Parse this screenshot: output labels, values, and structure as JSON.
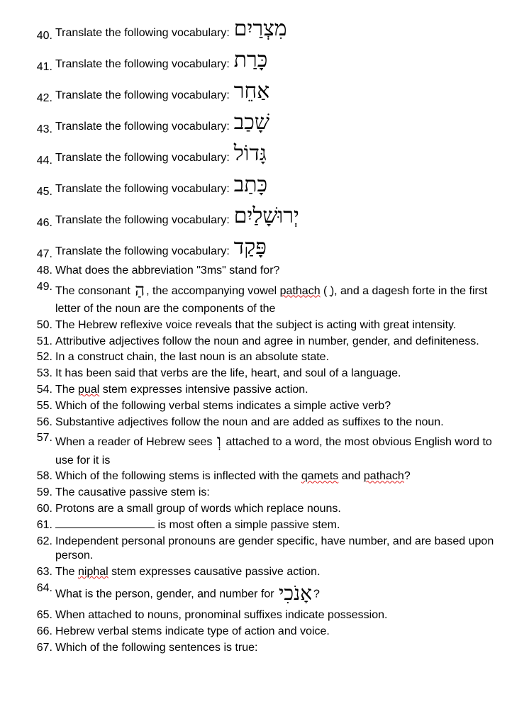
{
  "items": [
    {
      "n": "40.",
      "type": "vocab",
      "label": "Translate the following vocabulary:",
      "hebrew": "מִצְרַיִם"
    },
    {
      "n": "41.",
      "type": "vocab",
      "label": "Translate the following vocabulary:",
      "hebrew": "כָּרַת"
    },
    {
      "n": "42.",
      "type": "vocab",
      "label": "Translate the following vocabulary:",
      "hebrew": "אַחֵר"
    },
    {
      "n": "43.",
      "type": "vocab",
      "label": "Translate the following vocabulary:",
      "hebrew": "שָׁכַב"
    },
    {
      "n": "44.",
      "type": "vocab",
      "label": "Translate the following vocabulary:",
      "hebrew": "גָּדוֹל"
    },
    {
      "n": "45.",
      "type": "vocab",
      "label": "Translate the following vocabulary:",
      "hebrew": "כָּתַב"
    },
    {
      "n": "46.",
      "type": "vocab",
      "label": "Translate the following vocabulary:",
      "hebrew": "יְרוּשָׁלַיִם"
    },
    {
      "n": "47.",
      "type": "vocab",
      "label": "Translate the following vocabulary:",
      "hebrew": "פָּקַד"
    },
    {
      "n": "48.",
      "type": "text",
      "text": "What does the abbreviation \"3ms\" stand for?"
    },
    {
      "n": "49.",
      "type": "html",
      "html": "The consonant <span class=\"hebrew-inline\">הַ</span>, the accompanying vowel <span class=\"spell\">pathach</span> ( ַ), and a dagesh forte in the first letter of the noun are the components of the"
    },
    {
      "n": "50.",
      "type": "text",
      "text": "The Hebrew reflexive voice reveals that the subject is acting with great intensity."
    },
    {
      "n": "51.",
      "type": "text",
      "text": "Attributive adjectives follow the noun and agree in number, gender, and definiteness."
    },
    {
      "n": "52.",
      "type": "text",
      "text": "In a construct chain, the last noun is an absolute state."
    },
    {
      "n": "53.",
      "type": "text",
      "text": "It has been said that verbs are the life, heart, and soul of a language."
    },
    {
      "n": "54.",
      "type": "html",
      "html": "The <span class=\"spell\">pual</span> stem expresses intensive passive action."
    },
    {
      "n": "55.",
      "type": "text",
      "text": "Which of the following verbal stems indicates a simple active verb?"
    },
    {
      "n": "56.",
      "type": "text",
      "text": "Substantive adjectives follow the noun and are added as suffixes to the noun."
    },
    {
      "n": "57.",
      "type": "html",
      "html": "When a reader of Hebrew sees <span class=\"hebrew-inline\">וְ</span> attached to a word, the most obvious English word to use for it is"
    },
    {
      "n": "58.",
      "type": "html",
      "html": "Which of the following stems is inflected with the <span class=\"spell\">qamets</span> and <span class=\"spell\">pathach</span>?"
    },
    {
      "n": "59.",
      "type": "text",
      "text": "The causative passive stem is:"
    },
    {
      "n": "60.",
      "type": "text",
      "text": "Protons are a small group of words which replace nouns."
    },
    {
      "n": "61.",
      "type": "html",
      "html": "<span class=\"blank\"></span> is most often a simple passive stem."
    },
    {
      "n": "62.",
      "type": "text",
      "text": "Independent personal pronouns are gender specific, have number, and are based upon person."
    },
    {
      "n": "63.",
      "type": "html",
      "html": "The <span class=\"spell\">niphal</span> stem expresses causative passive action."
    },
    {
      "n": "64.",
      "type": "html",
      "html": "What is the person, gender, and number for <span class=\"hebrew-inline\" style=\"font-size:28px\">אָנֹכִי</span>?"
    },
    {
      "n": "65.",
      "type": "text",
      "text": "When attached to nouns, pronominal suffixes indicate possession."
    },
    {
      "n": "66.",
      "type": "text",
      "text": "Hebrew verbal stems indicate type of action and voice."
    },
    {
      "n": "67.",
      "type": "text",
      "text": "Which of the following sentences is true:"
    }
  ]
}
